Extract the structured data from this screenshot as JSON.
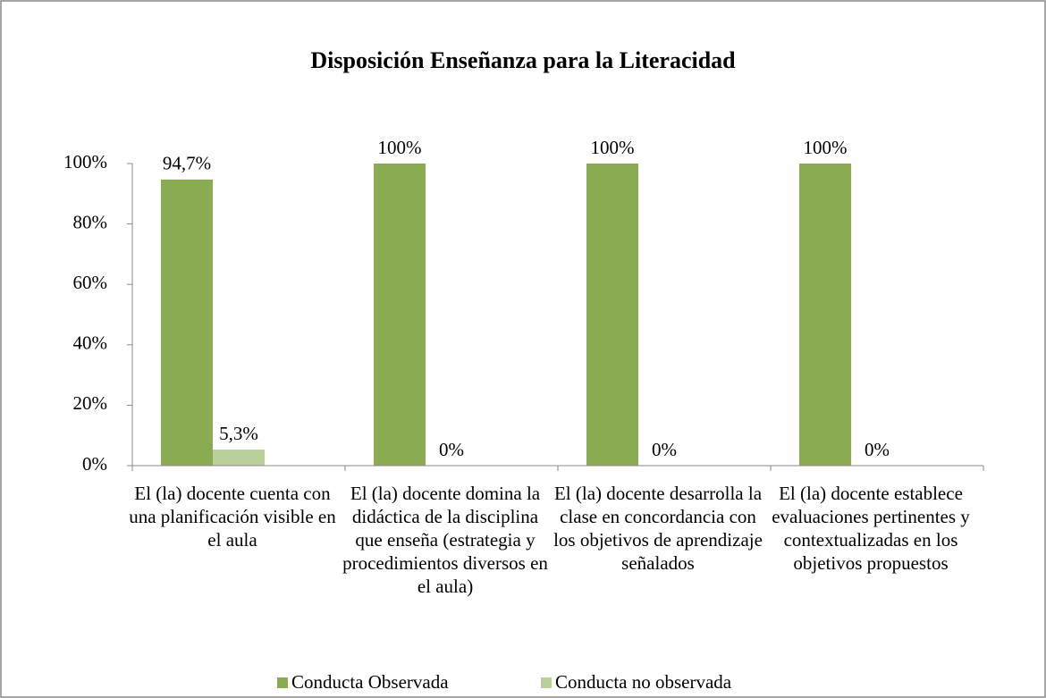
{
  "chart_data": {
    "type": "bar",
    "title": "Disposición Enseñanza para la Literacidad",
    "categories": [
      "El (la) docente cuenta con una planificación visible en el aula",
      "El (la) docente domina la didáctica de la disciplina que enseña (estrategia y procedimientos diversos en el aula)",
      "El (la) docente desarrolla la clase en concordancia con los objetivos de aprendizaje señalados",
      "El (la) docente establece evaluaciones pertinentes y contextualizadas en los objetivos propuestos"
    ],
    "series": [
      {
        "name": "Conducta Observada",
        "color": "#8aab52",
        "values": [
          94.7,
          100,
          100,
          100
        ],
        "value_labels": [
          "94,7%",
          "100%",
          "100%",
          "100%"
        ]
      },
      {
        "name": "Conducta no observada",
        "color": "#b9d09b",
        "values": [
          5.3,
          0,
          0,
          0
        ],
        "value_labels": [
          "5,3%",
          "0%",
          "0%",
          "0%"
        ]
      }
    ],
    "ylim": [
      0,
      100
    ],
    "yticks": [
      {
        "value": 0,
        "label": "0%"
      },
      {
        "value": 20,
        "label": "20%"
      },
      {
        "value": 40,
        "label": "40%"
      },
      {
        "value": 60,
        "label": "60%"
      },
      {
        "value": 80,
        "label": "80%"
      },
      {
        "value": 100,
        "label": "100%"
      }
    ],
    "legend": "bottom"
  }
}
